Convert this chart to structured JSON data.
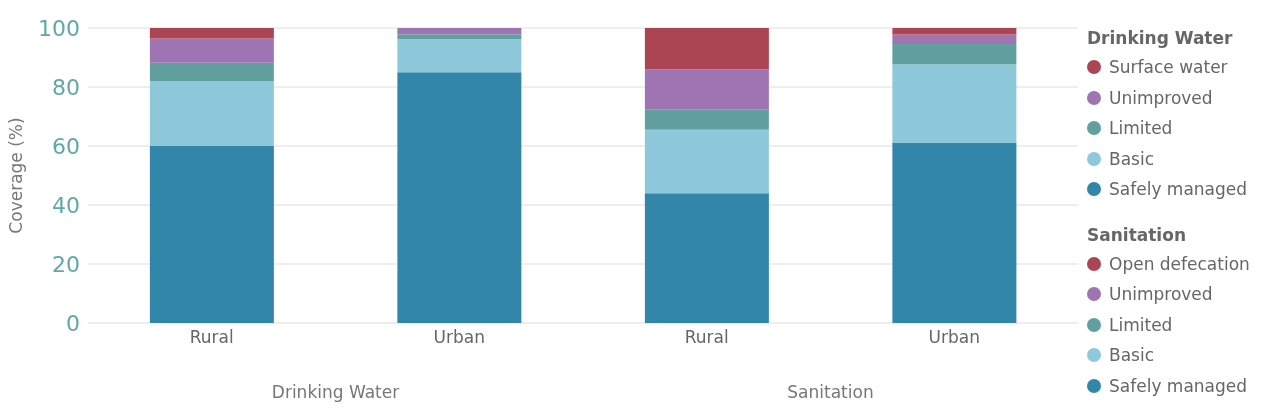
{
  "chart_data": {
    "type": "bar",
    "stacked": true,
    "ylabel": "Coverage (%)",
    "categories": [
      "Rural",
      "Urban",
      "Rural",
      "Urban"
    ],
    "annotations": [
      "Drinking Water",
      "Sanitation"
    ],
    "series": [
      {
        "name": "Safely managed",
        "color": "#3186aa",
        "values": [
          60,
          85,
          null,
          null
        ]
      },
      {
        "name": "Basic",
        "color": "#8ec9db",
        "values": [
          22,
          11.2,
          null,
          null
        ]
      },
      {
        "name": "Limited",
        "color": "#62a0a0",
        "values": [
          6.2,
          1.7,
          null,
          null
        ]
      },
      {
        "name": "Unimproved",
        "color": "#9e74b2",
        "values": [
          8.2,
          2.1,
          null,
          null
        ]
      },
      {
        "name": "Surface water",
        "color": "#ac4553",
        "values": [
          3.6,
          0,
          null,
          null
        ]
      },
      {
        "name": "Safely managed",
        "color": "#3186aa",
        "values": [
          null,
          null,
          44,
          61
        ]
      },
      {
        "name": "Basic",
        "color": "#8ec9db",
        "values": [
          null,
          null,
          21.5,
          26.6
        ]
      },
      {
        "name": "Limited",
        "color": "#62a0a0",
        "values": [
          null,
          null,
          7,
          7
        ]
      },
      {
        "name": "Unimproved",
        "color": "#9e74b2",
        "values": [
          null,
          null,
          13.5,
          3.2
        ]
      },
      {
        "name": "Open defecation",
        "color": "#ac4553",
        "values": [
          null,
          null,
          14,
          2.2
        ]
      }
    ],
    "ylim": [
      0,
      100
    ],
    "yticks": [
      0,
      20,
      40,
      60,
      80,
      100
    ],
    "grid": "y",
    "legend": "right"
  }
}
